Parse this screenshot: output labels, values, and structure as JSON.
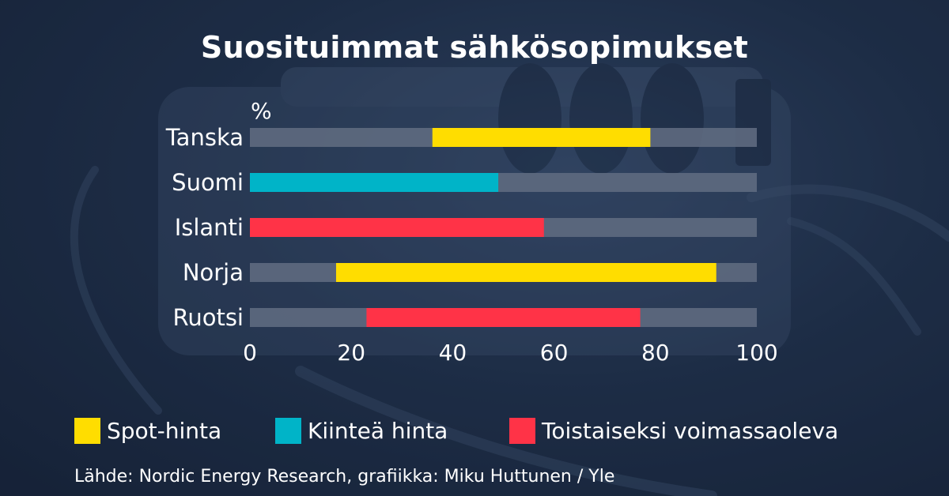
{
  "title": "Suosituimmat sähkösopimukset",
  "source": "Lähde: Nordic Energy Research, grafiikka: Miku Huttunen / Yle",
  "colors": {
    "spot": "#ffdd00",
    "fixed": "#00b4c8",
    "open": "#ff3347",
    "track": "#5e6a80"
  },
  "chart_data": {
    "type": "bar",
    "orientation": "horizontal",
    "unit_label": "%",
    "xlim": [
      0,
      100
    ],
    "x_ticks": [
      0,
      20,
      40,
      60,
      80,
      100
    ],
    "categories": [
      "Tanska",
      "Suomi",
      "Islanti",
      "Norja",
      "Ruotsi"
    ],
    "bars": [
      {
        "category": "Tanska",
        "series": "Spot-hinta",
        "start": 36,
        "end": 79
      },
      {
        "category": "Suomi",
        "series": "Kiinteä hinta",
        "start": 0,
        "end": 49
      },
      {
        "category": "Islanti",
        "series": "Toistaiseksi voimassaoleva",
        "start": 0,
        "end": 58
      },
      {
        "category": "Norja",
        "series": "Spot-hinta",
        "start": 17,
        "end": 92
      },
      {
        "category": "Ruotsi",
        "series": "Toistaiseksi voimassaoleva",
        "start": 23,
        "end": 77
      }
    ],
    "legend": [
      {
        "name": "Spot-hinta",
        "color": "#ffdd00"
      },
      {
        "name": "Kiinteä hinta",
        "color": "#00b4c8"
      },
      {
        "name": "Toistaiseksi voimassaoleva",
        "color": "#ff3347"
      }
    ],
    "legend_position": "bottom"
  }
}
